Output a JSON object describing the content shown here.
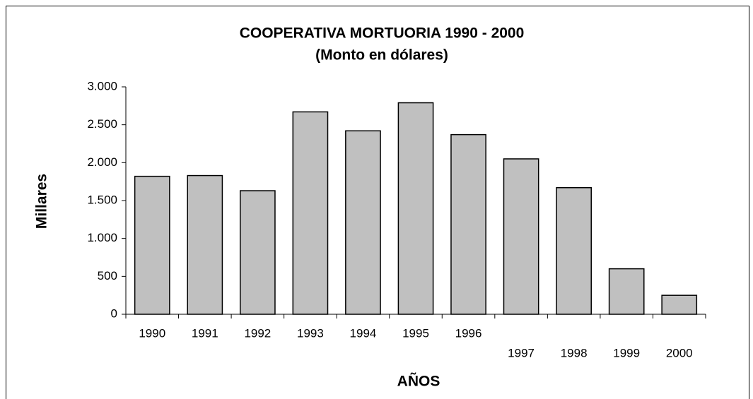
{
  "chart_data": {
    "type": "bar",
    "title": "COOPERATIVA MORTUORIA 1990 - 2000",
    "subtitle": "(Monto en dólares)",
    "x_label": "AÑOS",
    "y_label": "Millares",
    "categories": [
      "1990",
      "1991",
      "1992",
      "1993",
      "1994",
      "1995",
      "1996",
      "1997",
      "1998",
      "1999",
      "2000"
    ],
    "values": [
      1820,
      1830,
      1630,
      2670,
      2420,
      2790,
      2370,
      2050,
      1670,
      600,
      250
    ],
    "color": "#c0c0c0",
    "ylim": [
      0,
      3000
    ],
    "yticks": [
      0,
      500,
      {
        "value": 1000,
        "label": "1.000"
      },
      {
        "value": 1500,
        "label": "1.500"
      },
      {
        "value": 2000,
        "label": "2.000"
      },
      {
        "value": 2500,
        "label": "2.500"
      },
      {
        "value": 3000,
        "label": "3.000"
      }
    ],
    "grid": false
  }
}
